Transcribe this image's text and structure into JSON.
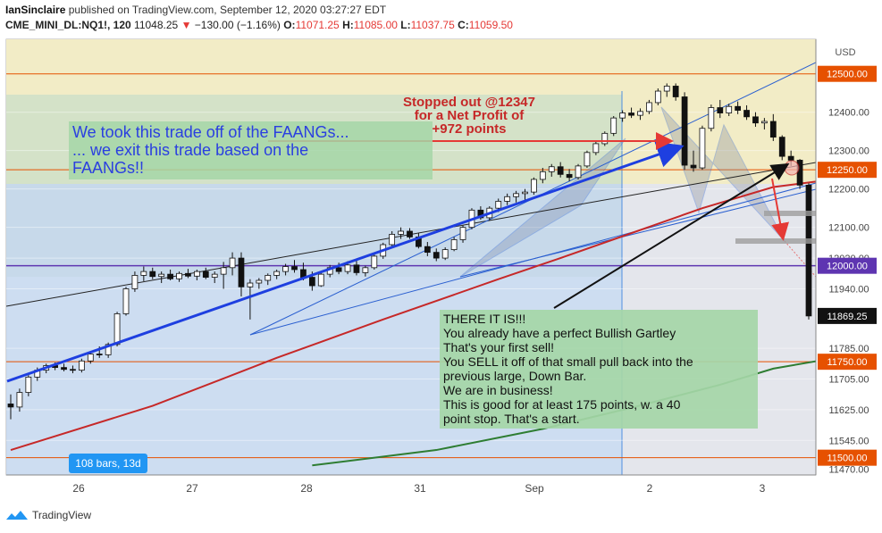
{
  "header": {
    "author": "IanSinclaire",
    "published": "published on TradingView.com, September 12, 2020 03:27:27 EDT",
    "symbol": "CME_MINI_DL:NQ1!, 120",
    "last": "11048.25",
    "change": "−130.00 (−1.16%)",
    "o_label": "O:",
    "o": "11071.25",
    "h_label": "H:",
    "h": "11085.00",
    "l_label": "L:",
    "l": "11037.75",
    "c_label": "C:",
    "c": "11059.50"
  },
  "footer": {
    "brand": "TradingView"
  },
  "colors": {
    "up": "#ffffff",
    "down": "#111111",
    "red_line": "#c62828",
    "green_line": "#2e7d32",
    "blue_trend": "#1e3fe0",
    "purple_line": "#5e35b1"
  },
  "chart_data": {
    "type": "candlestick",
    "title": "",
    "currency": "USD",
    "x_ticks": [
      "26",
      "27",
      "28",
      "31",
      "Sep",
      "2",
      "3"
    ],
    "y_ticks": [
      12500,
      12400,
      12300,
      12250,
      12200,
      12100,
      12020,
      11940,
      11869.25,
      11785,
      11750,
      11705,
      11625,
      11545,
      11500,
      11470
    ],
    "y_tick_labels": [
      "12500.00",
      "12400.00",
      "12300.00",
      "12250.00",
      "12200.00",
      "12100.00",
      "12020.00",
      "11940.00",
      "11869.25",
      "11785.00",
      "11750.00",
      "11705.00",
      "11625.00",
      "11545.00",
      "11500.00",
      "11470.00"
    ],
    "ylim": [
      11455,
      12590
    ],
    "price_labels": [
      {
        "value": 12500,
        "text": "12500.00",
        "color": "#e65100"
      },
      {
        "value": 12250,
        "text": "12250.00",
        "color": "#e65100"
      },
      {
        "value": 12000,
        "text": "12000.00",
        "color": "#5e35b1"
      },
      {
        "value": 11869.25,
        "text": "11869.25",
        "color": "#111111"
      },
      {
        "value": 11750,
        "text": "11750.00",
        "color": "#e65100"
      },
      {
        "value": 11500,
        "text": "11500.00",
        "color": "#e65100"
      }
    ],
    "horizontal_lines": [
      {
        "value": 12500,
        "color": "#e65100"
      },
      {
        "value": 12250,
        "color": "#e65100"
      },
      {
        "value": 12000,
        "color": "#5e35b1"
      },
      {
        "value": 11750,
        "color": "#e65100"
      },
      {
        "value": 11500,
        "color": "#e65100"
      }
    ],
    "range_badge": "108 bars, 13d",
    "candles": [
      [
        11640,
        11665,
        11600,
        11632
      ],
      [
        11632,
        11680,
        11620,
        11670
      ],
      [
        11670,
        11715,
        11660,
        11710
      ],
      [
        11710,
        11735,
        11700,
        11728
      ],
      [
        11728,
        11745,
        11720,
        11740
      ],
      [
        11740,
        11748,
        11728,
        11735
      ],
      [
        11735,
        11745,
        11725,
        11730
      ],
      [
        11730,
        11740,
        11720,
        11728
      ],
      [
        11728,
        11758,
        11722,
        11752
      ],
      [
        11752,
        11775,
        11745,
        11770
      ],
      [
        11770,
        11790,
        11760,
        11768
      ],
      [
        11768,
        11800,
        11760,
        11795
      ],
      [
        11795,
        11880,
        11790,
        11875
      ],
      [
        11875,
        11945,
        11870,
        11940
      ],
      [
        11940,
        11985,
        11932,
        11975
      ],
      [
        11975,
        11998,
        11960,
        11985
      ],
      [
        11985,
        11995,
        11965,
        11972
      ],
      [
        11972,
        11985,
        11955,
        11978
      ],
      [
        11978,
        11990,
        11962,
        11966
      ],
      [
        11966,
        11985,
        11958,
        11980
      ],
      [
        11980,
        11992,
        11968,
        11973
      ],
      [
        11973,
        11990,
        11962,
        11985
      ],
      [
        11985,
        11995,
        11965,
        11970
      ],
      [
        11970,
        11985,
        11955,
        11978
      ],
      [
        11978,
        12010,
        11940,
        11995
      ],
      [
        11995,
        12035,
        11975,
        12020
      ],
      [
        12020,
        12035,
        11920,
        11945
      ],
      [
        11945,
        11965,
        11860,
        11955
      ],
      [
        11955,
        11968,
        11940,
        11962
      ],
      [
        11962,
        11980,
        11950,
        11975
      ],
      [
        11975,
        11990,
        11965,
        11985
      ],
      [
        11985,
        12005,
        11975,
        11998
      ],
      [
        11998,
        12015,
        11982,
        11990
      ],
      [
        11990,
        12008,
        11962,
        11970
      ],
      [
        11970,
        11985,
        11935,
        11948
      ],
      [
        11948,
        11982,
        11945,
        11978
      ],
      [
        11978,
        12002,
        11970,
        11995
      ],
      [
        11995,
        12008,
        11978,
        11985
      ],
      [
        11985,
        12012,
        11978,
        12002
      ],
      [
        12002,
        12015,
        11975,
        11982
      ],
      [
        11982,
        12000,
        11972,
        11995
      ],
      [
        11995,
        12030,
        11990,
        12025
      ],
      [
        12025,
        12060,
        12018,
        12055
      ],
      [
        12055,
        12090,
        12048,
        12082
      ],
      [
        12082,
        12100,
        12070,
        12090
      ],
      [
        12090,
        12098,
        12070,
        12075
      ],
      [
        12075,
        12085,
        12045,
        12050
      ],
      [
        12050,
        12062,
        12025,
        12035
      ],
      [
        12035,
        12045,
        12012,
        12020
      ],
      [
        12020,
        12048,
        12015,
        12042
      ],
      [
        12042,
        12075,
        12038,
        12068
      ],
      [
        12068,
        12105,
        12060,
        12100
      ],
      [
        12100,
        12150,
        12095,
        12145
      ],
      [
        12145,
        12155,
        12120,
        12125
      ],
      [
        12125,
        12155,
        12118,
        12150
      ],
      [
        12150,
        12175,
        12140,
        12168
      ],
      [
        12168,
        12188,
        12158,
        12180
      ],
      [
        12180,
        12195,
        12165,
        12188
      ],
      [
        12188,
        12200,
        12172,
        12192
      ],
      [
        12192,
        12230,
        12185,
        12225
      ],
      [
        12225,
        12255,
        12215,
        12245
      ],
      [
        12245,
        12265,
        12232,
        12258
      ],
      [
        12258,
        12270,
        12230,
        12238
      ],
      [
        12238,
        12252,
        12220,
        12230
      ],
      [
        12230,
        12265,
        12225,
        12260
      ],
      [
        12260,
        12300,
        12255,
        12295
      ],
      [
        12295,
        12325,
        12288,
        12318
      ],
      [
        12318,
        12350,
        12312,
        12345
      ],
      [
        12345,
        12390,
        12338,
        12385
      ],
      [
        12385,
        12405,
        12375,
        12398
      ],
      [
        12398,
        12412,
        12385,
        12392
      ],
      [
        12392,
        12410,
        12380,
        12402
      ],
      [
        12402,
        12432,
        12395,
        12425
      ],
      [
        12425,
        12462,
        12418,
        12455
      ],
      [
        12455,
        12475,
        12440,
        12468
      ],
      [
        12468,
        12475,
        12430,
        12440
      ],
      [
        12440,
        12452,
        12250,
        12262
      ],
      [
        12262,
        12300,
        12245,
        12255
      ],
      [
        12255,
        12365,
        12250,
        12358
      ],
      [
        12358,
        12420,
        12350,
        12412
      ],
      [
        12412,
        12432,
        12385,
        12398
      ],
      [
        12398,
        12422,
        12390,
        12415
      ],
      [
        12415,
        12428,
        12395,
        12405
      ],
      [
        12405,
        12418,
        12380,
        12388
      ],
      [
        12388,
        12400,
        12362,
        12372
      ],
      [
        12372,
        12385,
        12355,
        12376
      ],
      [
        12376,
        12395,
        12325,
        12335
      ],
      [
        12335,
        12340,
        12275,
        12285
      ],
      [
        12285,
        12300,
        12260,
        12275
      ],
      [
        12275,
        12278,
        12200,
        12210
      ],
      [
        12210,
        12215,
        11860,
        11869.25
      ]
    ],
    "ma_red": [
      [
        0,
        11520
      ],
      [
        16,
        11635
      ],
      [
        30,
        11760
      ],
      [
        42,
        11860
      ],
      [
        55,
        11965
      ],
      [
        62,
        12020
      ],
      [
        70,
        12085
      ],
      [
        78,
        12150
      ],
      [
        86,
        12205
      ],
      [
        91,
        12220
      ]
    ],
    "ma_green": [
      [
        34,
        11480
      ],
      [
        48,
        11520
      ],
      [
        60,
        11575
      ],
      [
        70,
        11630
      ],
      [
        80,
        11690
      ],
      [
        86,
        11732
      ],
      [
        91,
        11752
      ]
    ],
    "annotations": [
      {
        "id": "faang",
        "lines": [
          "We took this trade off of the FAANGs...",
          "... we exit this trade based on the",
          "FAANGs!!"
        ],
        "color": "#2a3fe0",
        "background": "#a5d6a7"
      },
      {
        "id": "stopped",
        "lines": [
          "Stopped out @12347",
          "for a Net Profit of",
          "+972 points"
        ],
        "color": "#c62828"
      },
      {
        "id": "there",
        "lines": [
          "THERE IT IS!!!",
          "You already have a perfect Bullish Gartley",
          "That's your first sell!",
          "You SELL it off of that small pull back into the",
          "previous large, Down Bar.",
          "We are in business!",
          "This is good for at least 175 points, w. a 40",
          "point stop. That's a start."
        ],
        "color": "#111111",
        "background": "#a5d6a7"
      }
    ]
  }
}
